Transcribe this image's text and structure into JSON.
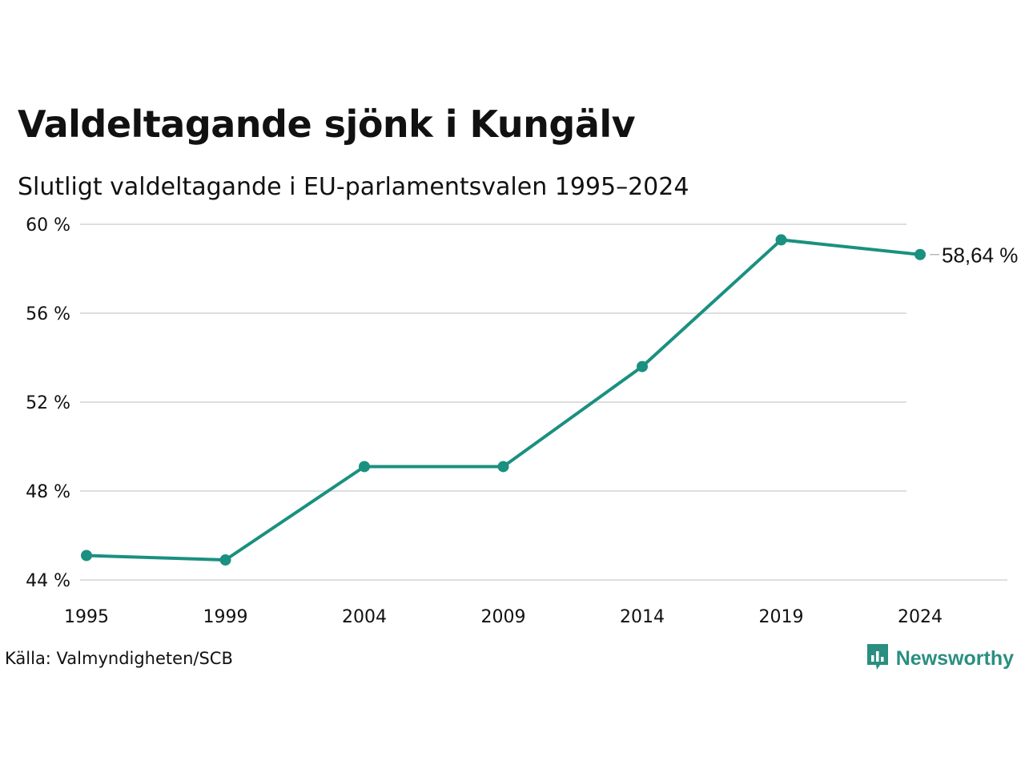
{
  "title": "Valdeltagande sjönk i Kungälv",
  "subtitle": "Slutligt valdeltagande i EU-parlamentsvalen 1995–2024",
  "source": "Källa: Valmyndigheten/SCB",
  "brand": {
    "name": "Newsworthy",
    "icon": "newsworthy-logo-icon"
  },
  "colors": {
    "line": "#1a9080",
    "grid": "#dedede",
    "brand": "#2a8f80"
  },
  "chart_data": {
    "type": "line",
    "x": [
      "1995",
      "1999",
      "2004",
      "2009",
      "2014",
      "2019",
      "2024"
    ],
    "series": [
      {
        "values": [
          45.1,
          44.9,
          49.1,
          49.1,
          53.6,
          59.3,
          58.64
        ]
      }
    ],
    "ylim": [
      44,
      60
    ],
    "yticks": [
      60,
      56,
      52,
      48,
      44
    ],
    "ytick_labels": [
      "60 %",
      "56 %",
      "52 %",
      "48 %",
      "44 %"
    ],
    "end_label": "58,64 %",
    "grid": true,
    "legend": "none"
  }
}
